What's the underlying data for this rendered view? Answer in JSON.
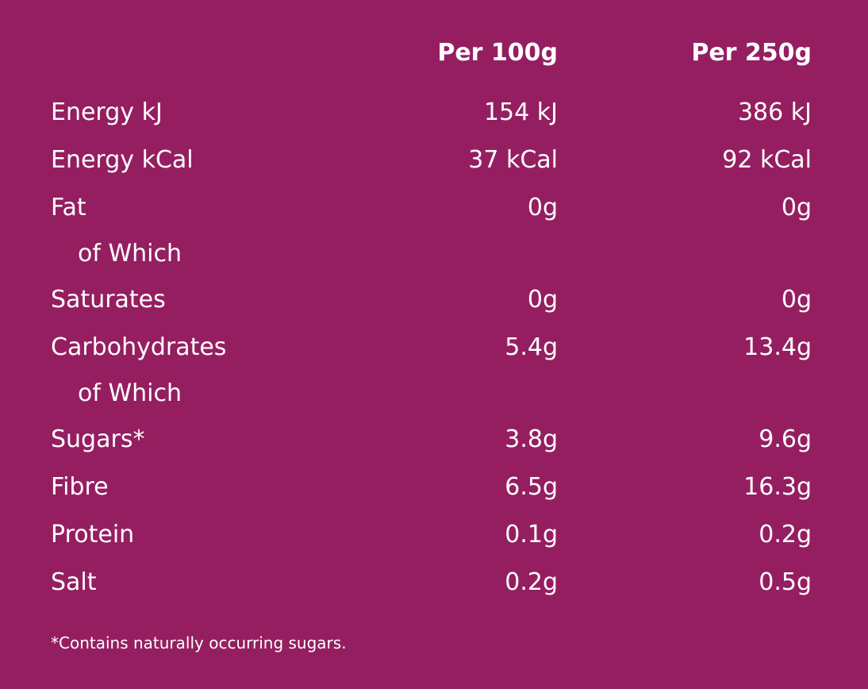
{
  "columns": {
    "per100": "Per 100g",
    "per250": "Per 250g"
  },
  "rows": [
    {
      "label": "Energy kJ",
      "per100": "154 kJ",
      "per250": "386 kJ"
    },
    {
      "label": "Energy kCal",
      "per100": "37 kCal",
      "per250": "92 kCal"
    },
    {
      "label": "Fat",
      "per100": "0g",
      "per250": "0g"
    },
    {
      "label": "of Which",
      "per100": "",
      "per250": ""
    },
    {
      "label": "Saturates",
      "per100": "0g",
      "per250": "0g"
    },
    {
      "label": "Carbohydrates",
      "per100": "5.4g",
      "per250": "13.4g"
    },
    {
      "label": "of Which",
      "per100": "",
      "per250": ""
    },
    {
      "label": "Sugars*",
      "per100": "3.8g",
      "per250": "9.6g"
    },
    {
      "label": "Fibre",
      "per100": "6.5g",
      "per250": "16.3g"
    },
    {
      "label": "Protein",
      "per100": "0.1g",
      "per250": "0.2g"
    },
    {
      "label": "Salt",
      "per100": "0.2g",
      "per250": "0.5g"
    }
  ],
  "footnote": "*Contains naturally occurring sugars.",
  "colors": {
    "background": "#951E61",
    "text": "#FFFFFF"
  }
}
